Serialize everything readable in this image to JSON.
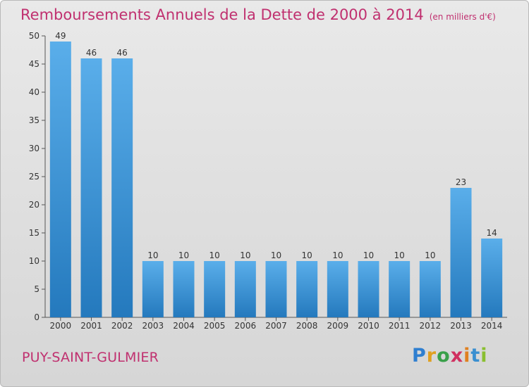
{
  "title": "Remboursements Annuels de la Dette de 2000 à 2014",
  "subtitle": "(en milliers d'€)",
  "footer": {
    "location": "PUY-SAINT-GULMIER",
    "logo": "Proxiti"
  },
  "colors": {
    "bar_top": "#5aaeea",
    "bar_bottom": "#2479bd",
    "title": "#c0306f"
  },
  "chart_data": {
    "type": "bar",
    "categories": [
      "2000",
      "2001",
      "2002",
      "2003",
      "2004",
      "2005",
      "2006",
      "2007",
      "2008",
      "2009",
      "2010",
      "2011",
      "2012",
      "2013",
      "2014"
    ],
    "values": [
      49,
      46,
      46,
      10,
      10,
      10,
      10,
      10,
      10,
      10,
      10,
      10,
      10,
      23,
      14
    ],
    "ylim": [
      0,
      50
    ],
    "yticks": [
      0,
      5,
      10,
      15,
      20,
      25,
      30,
      35,
      40,
      45,
      50
    ],
    "grid": false
  }
}
